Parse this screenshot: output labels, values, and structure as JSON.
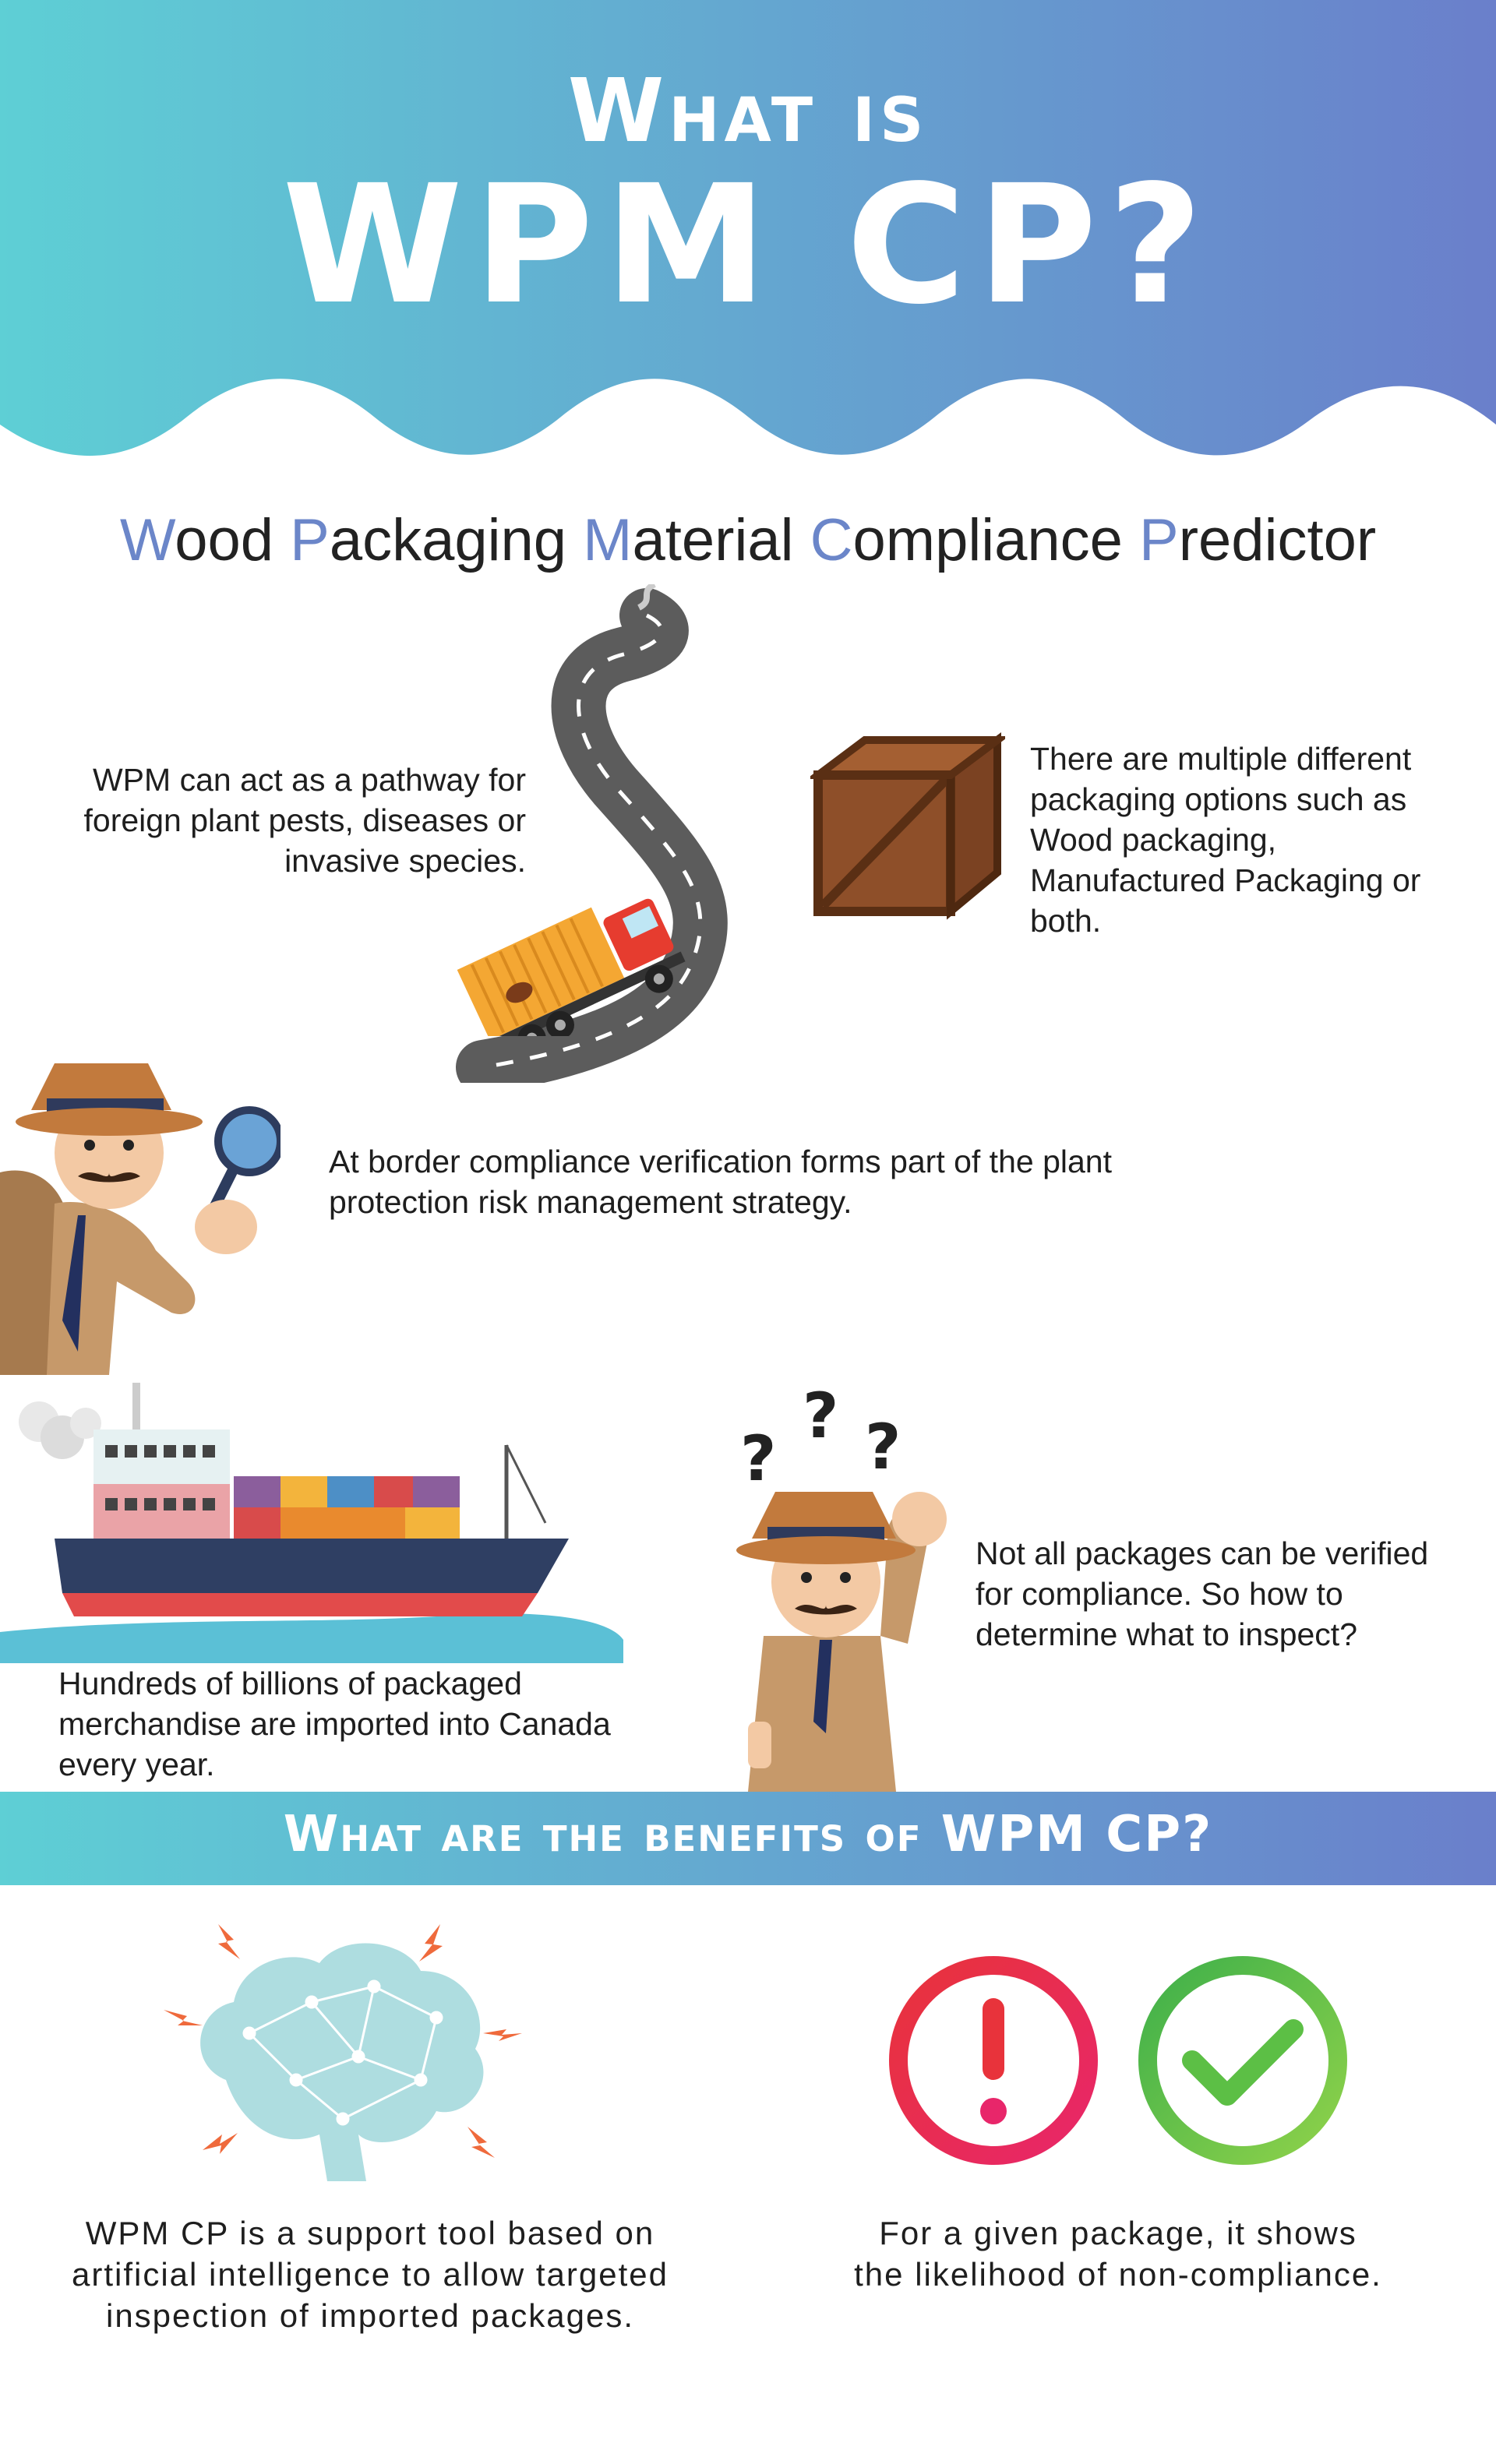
{
  "header": {
    "title_line1": "What is",
    "title_line2": "WPM CP?",
    "gradient_start": "#5ecfd5",
    "gradient_end": "#6a7fcb"
  },
  "subtitle": {
    "parts": [
      {
        "initial": "W",
        "rest": "ood "
      },
      {
        "initial": "P",
        "rest": "ackaging "
      },
      {
        "initial": "M",
        "rest": "aterial "
      },
      {
        "initial": "C",
        "rest": "ompliance "
      },
      {
        "initial": "P",
        "rest": "redictor"
      }
    ]
  },
  "pathway": {
    "text": "WPM can act as a pathway for foreign plant pests, diseases or invasive species."
  },
  "packaging": {
    "text": "There are multiple different packaging options such as Wood packaging, Manufactured Packaging or both."
  },
  "border": {
    "text": "At border compliance verification forms part of the plant protection risk management strategy."
  },
  "imports": {
    "text": "Hundreds of billions of packaged merchandise are imported into Canada every year."
  },
  "inspect": {
    "text": "Not all packages can be verified for compliance. So how to determine what to inspect?"
  },
  "benefits": {
    "title": "What are the benefits of WPM CP?",
    "tool_text": "WPM CP is a support tool based on artificial intelligence to allow targeted inspection of imported packages.",
    "likelihood_text": "For a given package, it shows the likelihood of non-compliance."
  },
  "icons": {
    "road": "winding-road-icon",
    "truck": "truck-icon",
    "crate": "wooden-crate-icon",
    "detective": "detective-icon",
    "ship": "cargo-ship-icon",
    "question": "question-mark-icon",
    "brain": "ai-brain-icon",
    "alert": "exclamation-alert-icon",
    "check": "checkmark-icon"
  }
}
